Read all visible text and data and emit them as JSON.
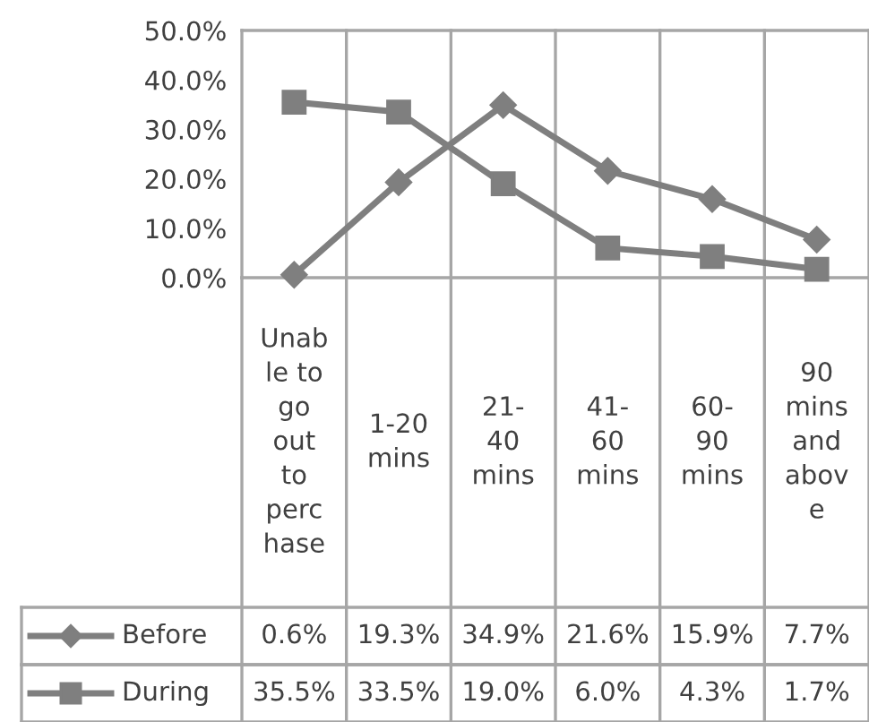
{
  "chart_data": {
    "type": "line",
    "categories": [
      "Unab\nle to\ngo\nout\nto\nperc\nhase",
      "1-20\nmins",
      "21-\n40\nmins",
      "41-\n60\nmins",
      "60-\n90\nmins",
      "90\nmins\nand\nabov\ne"
    ],
    "series": [
      {
        "name": "Before",
        "color": "#7f7f7f",
        "marker": "diamond",
        "values": [
          0.6,
          19.3,
          34.9,
          21.6,
          15.9,
          7.7
        ],
        "value_labels": [
          "0.6%",
          "19.3%",
          "34.9%",
          "21.6%",
          "15.9%",
          "7.7%"
        ]
      },
      {
        "name": "During",
        "color": "#7f7f7f",
        "marker": "square",
        "values": [
          35.5,
          33.5,
          19.0,
          6.0,
          4.3,
          1.7
        ],
        "value_labels": [
          "35.5%",
          "33.5%",
          "19.0%",
          "6.0%",
          "4.3%",
          "1.7%"
        ]
      }
    ],
    "ylim": [
      0,
      50
    ],
    "yticks": [
      {
        "value": 0,
        "label": "0.0%"
      },
      {
        "value": 10,
        "label": "10.0%"
      },
      {
        "value": 20,
        "label": "20.0%"
      },
      {
        "value": 30,
        "label": "30.0%"
      },
      {
        "value": 40,
        "label": "40.0%"
      },
      {
        "value": 50,
        "label": "50.0%"
      }
    ],
    "grid": "x",
    "legend": "bottom",
    "line_style": "solid"
  }
}
